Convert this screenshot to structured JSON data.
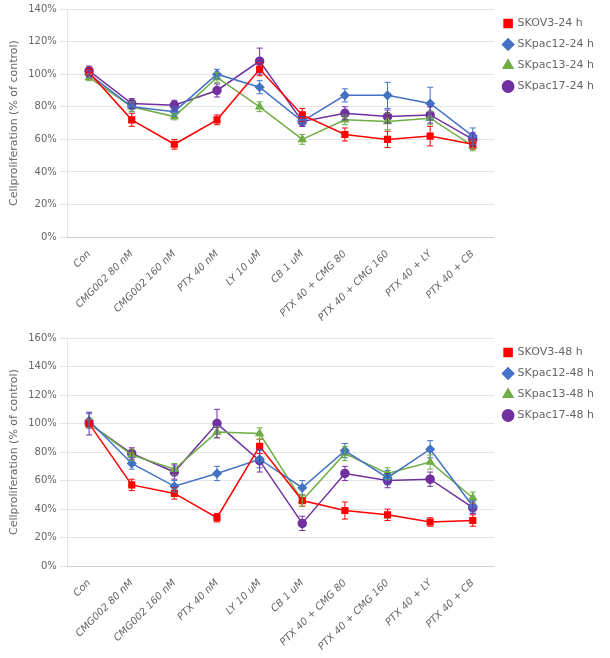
{
  "chart_data": [
    {
      "type": "line",
      "categories": [
        "Con",
        "CMG002 80 nM",
        "CMG002 160 nM",
        "PTX 40 nM",
        "LY 10 uM",
        "CB 1 uM",
        "PTX 40 + CMG 80",
        "PTX 40 + CMG 160",
        "PTX 40 + LY",
        "PTX 40 + CB"
      ],
      "ylabel": "Cellproliferation (% of control)",
      "ylim": [
        0,
        1.4
      ],
      "yticks": [
        {
          "value": 0,
          "label": "0%"
        },
        {
          "value": 0.2,
          "label": "20%"
        },
        {
          "value": 0.4,
          "label": "40%"
        },
        {
          "value": 0.6,
          "label": "60%"
        },
        {
          "value": 0.8,
          "label": "80%"
        },
        {
          "value": 1.0,
          "label": "100%"
        },
        {
          "value": 1.2,
          "label": "120%"
        },
        {
          "value": 1.4,
          "label": "140%"
        }
      ],
      "grid": true,
      "legend": "right",
      "series": [
        {
          "name": "SKOV3-24 h",
          "color": "#FF0000",
          "marker": "square",
          "values": [
            1.01,
            0.72,
            0.57,
            0.72,
            1.03,
            0.75,
            0.63,
            0.6,
            0.62,
            0.57
          ],
          "yerr": [
            0.03,
            0.04,
            0.03,
            0.03,
            0.04,
            0.04,
            0.04,
            0.05,
            0.06,
            0.03
          ]
        },
        {
          "name": "SKpac12-24 h",
          "color": "#4472C4",
          "marker": "diamond",
          "values": [
            1.0,
            0.8,
            0.77,
            1.0,
            0.92,
            0.71,
            0.87,
            0.87,
            0.82,
            0.62
          ],
          "yerr": [
            0.02,
            0.03,
            0.03,
            0.03,
            0.04,
            0.03,
            0.04,
            0.08,
            0.1,
            0.05
          ]
        },
        {
          "name": "SKpac13-24 h",
          "color": "#70AD47",
          "marker": "triangle",
          "values": [
            0.98,
            0.8,
            0.74,
            0.98,
            0.8,
            0.6,
            0.72,
            0.71,
            0.73,
            0.56
          ],
          "yerr": [
            0.02,
            0.03,
            0.02,
            0.03,
            0.03,
            0.03,
            0.03,
            0.05,
            0.04,
            0.03
          ]
        },
        {
          "name": "SKpac17-24 h",
          "color": "#7030A0",
          "marker": "circle",
          "values": [
            1.02,
            0.82,
            0.81,
            0.9,
            1.08,
            0.71,
            0.76,
            0.74,
            0.75,
            0.6
          ],
          "yerr": [
            0.03,
            0.03,
            0.03,
            0.04,
            0.08,
            0.03,
            0.04,
            0.04,
            0.05,
            0.04
          ]
        }
      ]
    },
    {
      "type": "line",
      "categories": [
        "Con",
        "CMG002 80 nM",
        "CMG002 160 nM",
        "PTX 40 nM",
        "LY 10 uM",
        "CB 1 uM",
        "PTX 40 + CMG 80",
        "PTX 40 + CMG 160",
        "PTX 40 + LY",
        "PTX 40 + CB"
      ],
      "ylabel": "Cellproliferation (% of control)",
      "ylim": [
        0,
        1.6
      ],
      "yticks": [
        {
          "value": 0,
          "label": "0%"
        },
        {
          "value": 0.2,
          "label": "20%"
        },
        {
          "value": 0.4,
          "label": "40%"
        },
        {
          "value": 0.6,
          "label": "60%"
        },
        {
          "value": 0.8,
          "label": "80%"
        },
        {
          "value": 1.0,
          "label": "100%"
        },
        {
          "value": 1.2,
          "label": "120%"
        },
        {
          "value": 1.4,
          "label": "140%"
        },
        {
          "value": 1.6,
          "label": "160%"
        }
      ],
      "grid": true,
      "legend": "right",
      "series": [
        {
          "name": "SKOV3-48 h",
          "color": "#FF0000",
          "marker": "square",
          "values": [
            1.0,
            0.57,
            0.51,
            0.34,
            0.84,
            0.46,
            0.39,
            0.36,
            0.31,
            0.32
          ],
          "yerr": [
            0.03,
            0.04,
            0.04,
            0.03,
            0.05,
            0.04,
            0.06,
            0.04,
            0.03,
            0.04
          ]
        },
        {
          "name": "SKpac12-48 h",
          "color": "#4472C4",
          "marker": "diamond",
          "values": [
            1.02,
            0.72,
            0.56,
            0.65,
            0.75,
            0.55,
            0.81,
            0.62,
            0.82,
            0.42
          ],
          "yerr": [
            0.05,
            0.04,
            0.04,
            0.05,
            0.06,
            0.05,
            0.05,
            0.05,
            0.06,
            0.04
          ]
        },
        {
          "name": "SKpac13-48 h",
          "color": "#70AD47",
          "marker": "triangle",
          "values": [
            1.0,
            0.78,
            0.68,
            0.94,
            0.93,
            0.46,
            0.79,
            0.65,
            0.73,
            0.48
          ],
          "yerr": [
            0.03,
            0.04,
            0.04,
            0.04,
            0.04,
            0.04,
            0.05,
            0.04,
            0.05,
            0.04
          ]
        },
        {
          "name": "SKpac17-48 h",
          "color": "#7030A0",
          "marker": "circle",
          "values": [
            1.0,
            0.79,
            0.66,
            1.0,
            0.74,
            0.3,
            0.65,
            0.6,
            0.61,
            0.41
          ],
          "yerr": [
            0.08,
            0.04,
            0.05,
            0.1,
            0.08,
            0.05,
            0.05,
            0.05,
            0.05,
            0.04
          ]
        }
      ]
    }
  ]
}
